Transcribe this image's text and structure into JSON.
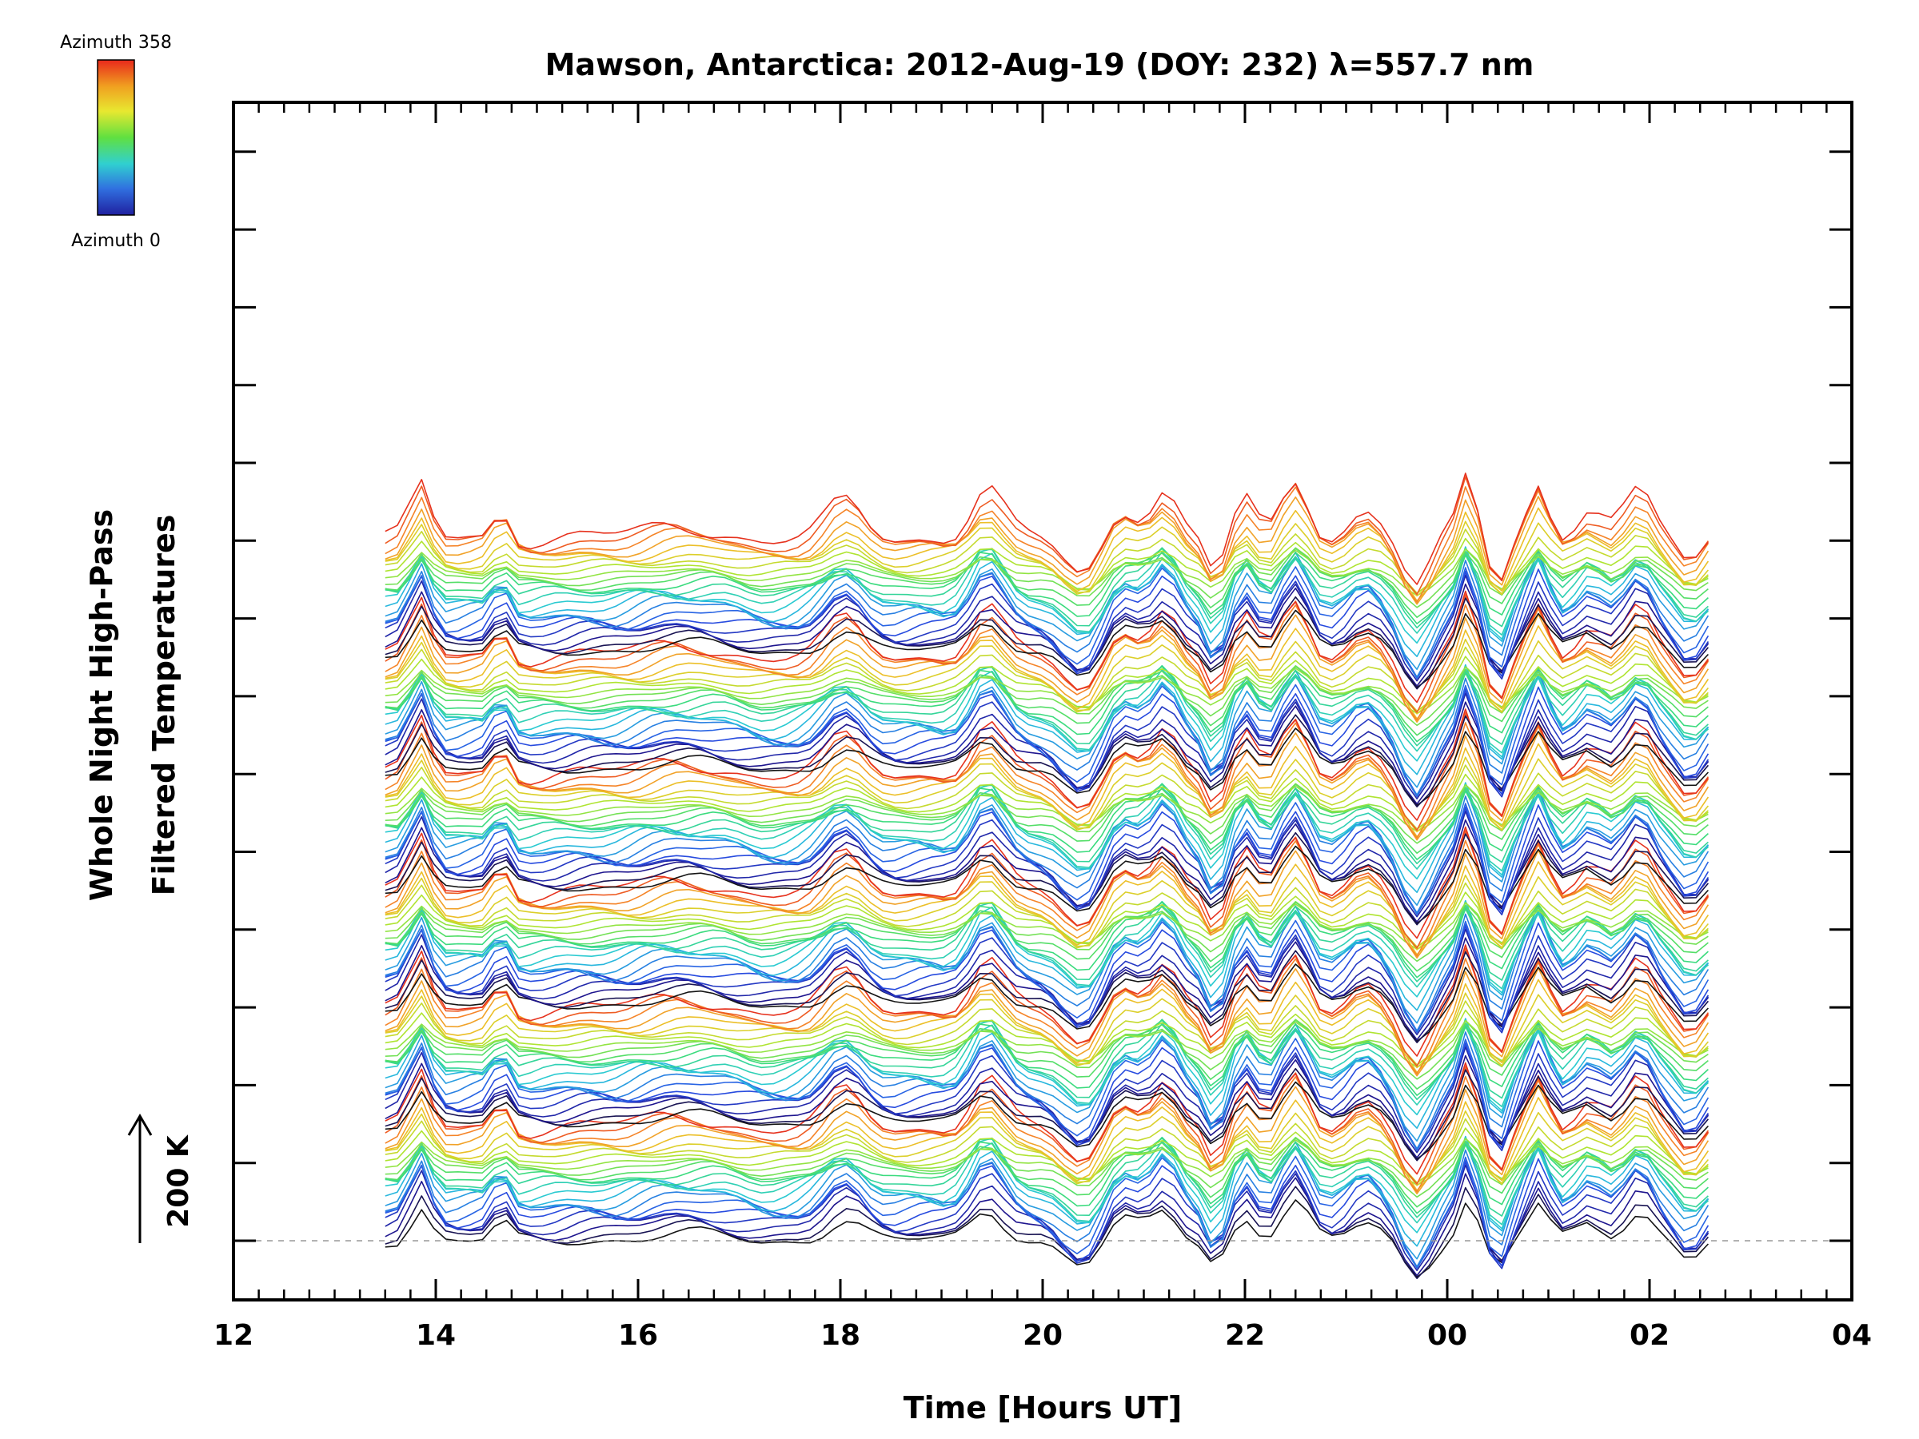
{
  "chart_data": {
    "type": "line",
    "title": "Mawson, Antarctica: 2012-Aug-19 (DOY: 232) λ=557.7 nm",
    "xlabel": "Time [Hours UT]",
    "ylabel_line1": "Whole Night High-Pass",
    "ylabel_line2": "Filtered Temperatures",
    "x_ticks": [
      "12",
      "14",
      "16",
      "18",
      "20",
      "22",
      "00",
      "02",
      "04"
    ],
    "xlim": [
      12,
      28
    ],
    "data_time_range": [
      13.5,
      26.6
    ],
    "scale_bar_label": "200 K",
    "colorbar": {
      "top_label": "Azimuth 358",
      "bottom_label": "Azimuth 0",
      "colors": [
        "#e8281c",
        "#f0a020",
        "#e8e830",
        "#60e040",
        "#30d0d0",
        "#3070e0",
        "#2020a0"
      ]
    },
    "trace_count": 150,
    "cycle_length": 25,
    "baseline_style": "dashed gray"
  }
}
